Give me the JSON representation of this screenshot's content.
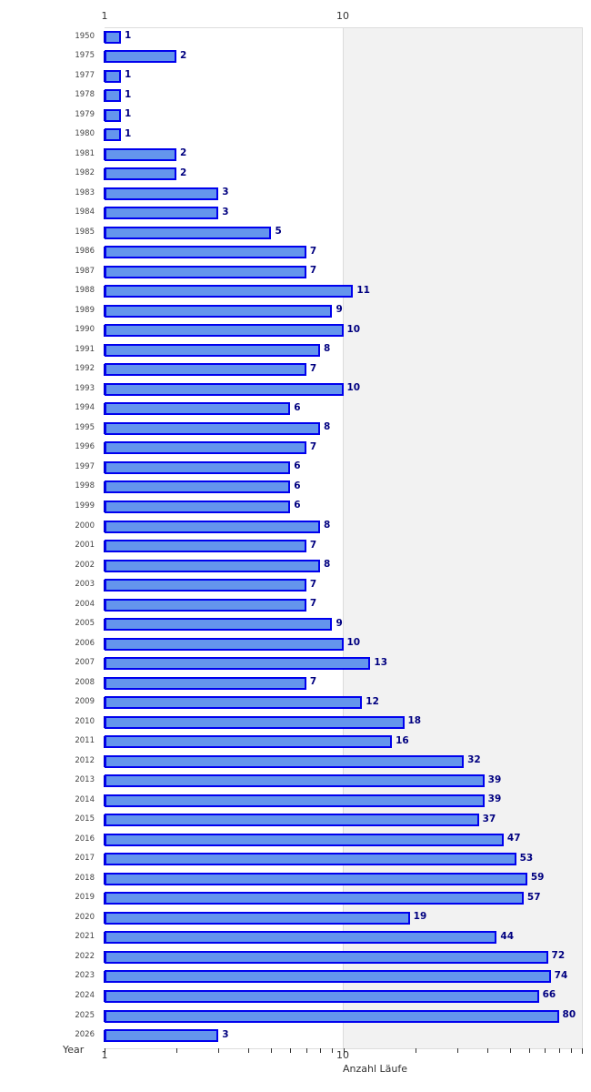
{
  "chart_data": {
    "type": "bar",
    "orientation": "horizontal",
    "title": "",
    "xlabel": "Anzahl Läufe",
    "ylabel": "Year",
    "xscale": "log",
    "xlim": [
      1,
      100
    ],
    "x_tick_labels": [
      "1",
      "10"
    ],
    "grid": false,
    "legend": null,
    "categories": [
      "1950",
      "1975",
      "1977",
      "1978",
      "1979",
      "1980",
      "1981",
      "1982",
      "1983",
      "1984",
      "1985",
      "1986",
      "1987",
      "1988",
      "1989",
      "1990",
      "1991",
      "1992",
      "1993",
      "1994",
      "1995",
      "1996",
      "1997",
      "1998",
      "1999",
      "2000",
      "2001",
      "2002",
      "2003",
      "2004",
      "2005",
      "2006",
      "2007",
      "2008",
      "2009",
      "2010",
      "2011",
      "2012",
      "2013",
      "2014",
      "2015",
      "2016",
      "2017",
      "2018",
      "2019",
      "2020",
      "2021",
      "2022",
      "2023",
      "2024",
      "2025",
      "2026"
    ],
    "values": [
      1,
      2,
      1,
      1,
      1,
      1,
      2,
      2,
      3,
      3,
      5,
      7,
      7,
      11,
      9,
      10,
      8,
      7,
      10,
      6,
      8,
      7,
      6,
      6,
      6,
      8,
      7,
      8,
      7,
      7,
      9,
      10,
      13,
      7,
      12,
      18,
      16,
      32,
      39,
      39,
      37,
      47,
      53,
      59,
      57,
      19,
      44,
      72,
      74,
      66,
      80,
      3
    ],
    "colors": {
      "bar_fill": "#6495ed",
      "bar_border": "#0000ee",
      "value_label": "#000080",
      "upper_band": "#f2f2f2"
    }
  },
  "axis": {
    "top_labels": [
      "1",
      "10"
    ],
    "bottom_labels": [
      "1",
      "10"
    ],
    "x_title": "Anzahl Läufe",
    "y_title": "Year"
  }
}
